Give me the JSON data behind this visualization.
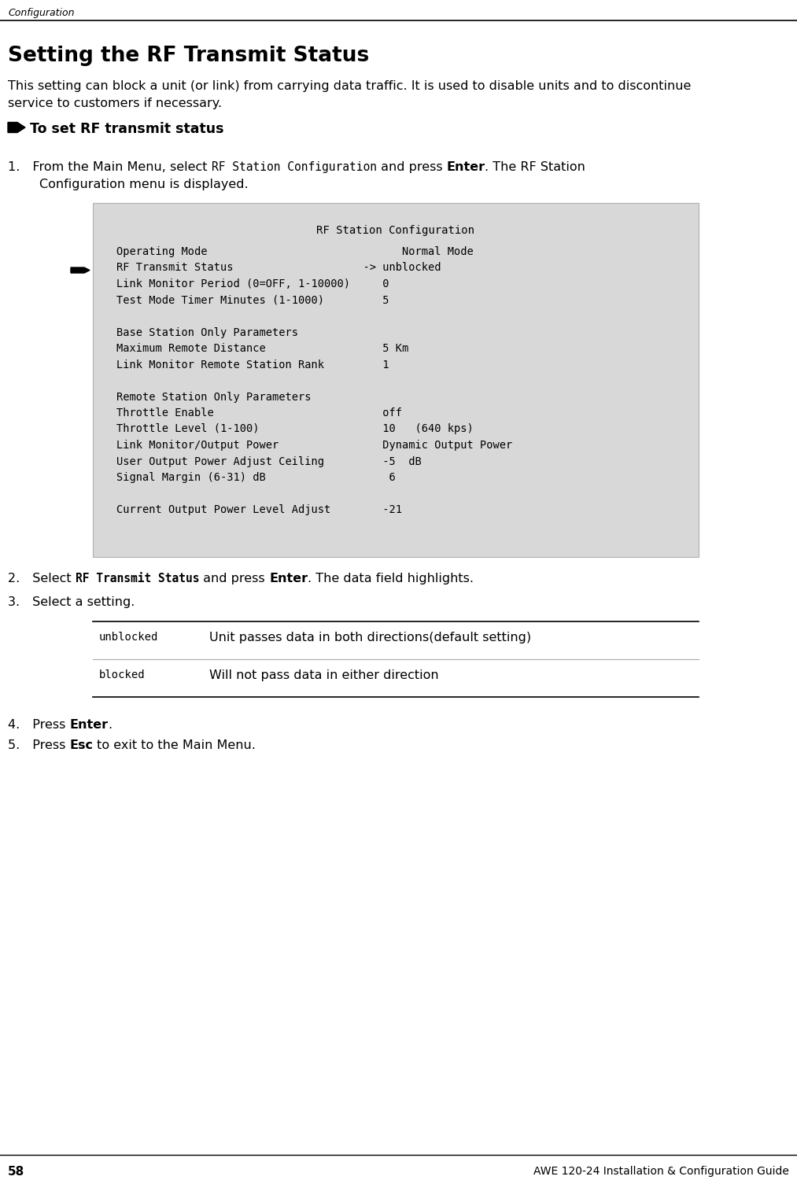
{
  "page_label": "Configuration",
  "page_number": "58",
  "footer_right": "AWE 120-24 Installation & Configuration Guide",
  "title": "Setting the RF Transmit Status",
  "body_line1": "This setting can block a unit (or link) from carrying data traffic. It is used to disable units and to discontinue",
  "body_line2": "service to customers if necessary.",
  "arrow_text": "To set RF transmit status",
  "terminal_title": "RF Station Configuration",
  "terminal_lines": [
    "Operating Mode                              Normal Mode",
    "RF Transmit Status                    -> unblocked",
    "Link Monitor Period (0=OFF, 1-10000)     0",
    "Test Mode Timer Minutes (1-1000)         5",
    "",
    "Base Station Only Parameters",
    "Maximum Remote Distance                  5 Km",
    "Link Monitor Remote Station Rank         1",
    "",
    "Remote Station Only Parameters",
    "Throttle Enable                          off",
    "Throttle Level (1-100)                   10   (640 kps)",
    "Link Monitor/Output Power                Dynamic Output Power",
    "User Output Power Adjust Ceiling         -5  dB",
    "Signal Margin (6-31) dB                   6",
    "",
    "Current Output Power Level Adjust        -21"
  ],
  "table_rows": [
    {
      "col1": "unblocked",
      "col2": "Unit passes data in both directions(default setting)"
    },
    {
      "col1": "blocked",
      "col2": "Will not pass data in either direction"
    }
  ],
  "bg_color": "#ffffff",
  "terminal_bg": "#d8d8d8",
  "text_color": "#000000"
}
